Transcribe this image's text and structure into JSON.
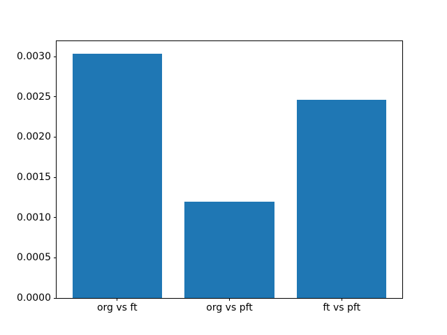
{
  "figure": {
    "background": "#ffffff",
    "axis_color": "#000000",
    "text_color": "#000000"
  },
  "chart_data": {
    "type": "bar",
    "title": "",
    "xlabel": "",
    "ylabel": "",
    "categories": [
      "org vs ft",
      "org vs pft",
      "ft vs pft"
    ],
    "values": [
      0.00304,
      0.0012,
      0.00246
    ],
    "bar_color": "#1f77b4",
    "bar_width": 0.8,
    "ylim": [
      0,
      0.003192
    ],
    "yticks": [
      0.0,
      0.0005,
      0.001,
      0.0015,
      0.002,
      0.0025,
      0.003
    ],
    "ytick_labels": [
      "0.0000",
      "0.0005",
      "0.0010",
      "0.0015",
      "0.0020",
      "0.0025",
      "0.0030"
    ],
    "grid": false,
    "legend": null
  }
}
